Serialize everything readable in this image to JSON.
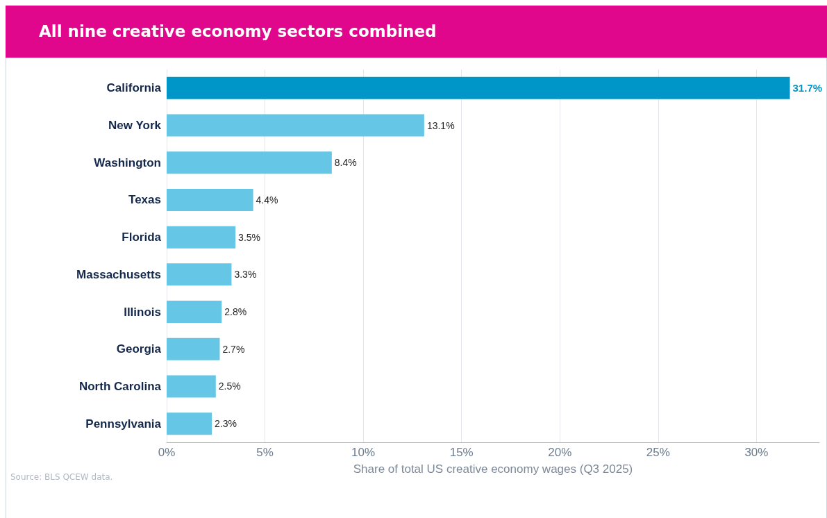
{
  "chart_data": {
    "type": "bar",
    "orientation": "horizontal",
    "title": "All nine creative economy sectors combined",
    "categories": [
      "California",
      "New York",
      "Washington",
      "Texas",
      "Florida",
      "Massachusetts",
      "Illinois",
      "Georgia",
      "North Carolina",
      "Pennsylvania"
    ],
    "values": [
      31.7,
      13.1,
      8.4,
      4.4,
      3.5,
      3.3,
      2.8,
      2.7,
      2.5,
      2.3
    ],
    "colors": [
      "#0096c8",
      "#66c6e6",
      "#66c6e6",
      "#66c6e6",
      "#66c6e6",
      "#66c6e6",
      "#66c6e6",
      "#66c6e6",
      "#66c6e6",
      "#66c6e6"
    ],
    "value_labels": [
      "31.7%",
      "13.1%",
      "8.4%",
      "4.4%",
      "3.5%",
      "3.3%",
      "2.8%",
      "2.7%",
      "2.5%",
      "2.3%"
    ],
    "xlabel": "Share of total US creative economy wages (Q3 2025)",
    "xlim": [
      0,
      33.2
    ],
    "xticks": [
      {
        "value": 0,
        "label": "0%"
      },
      {
        "value": 5,
        "label": "5%"
      },
      {
        "value": 10,
        "label": "10%"
      },
      {
        "value": 15,
        "label": "15%"
      },
      {
        "value": 20,
        "label": "20%"
      },
      {
        "value": 25,
        "label": "25%"
      },
      {
        "value": 30,
        "label": "30%"
      }
    ],
    "grid": "x",
    "annotations": [
      "Source: BLS QCEW data."
    ]
  }
}
